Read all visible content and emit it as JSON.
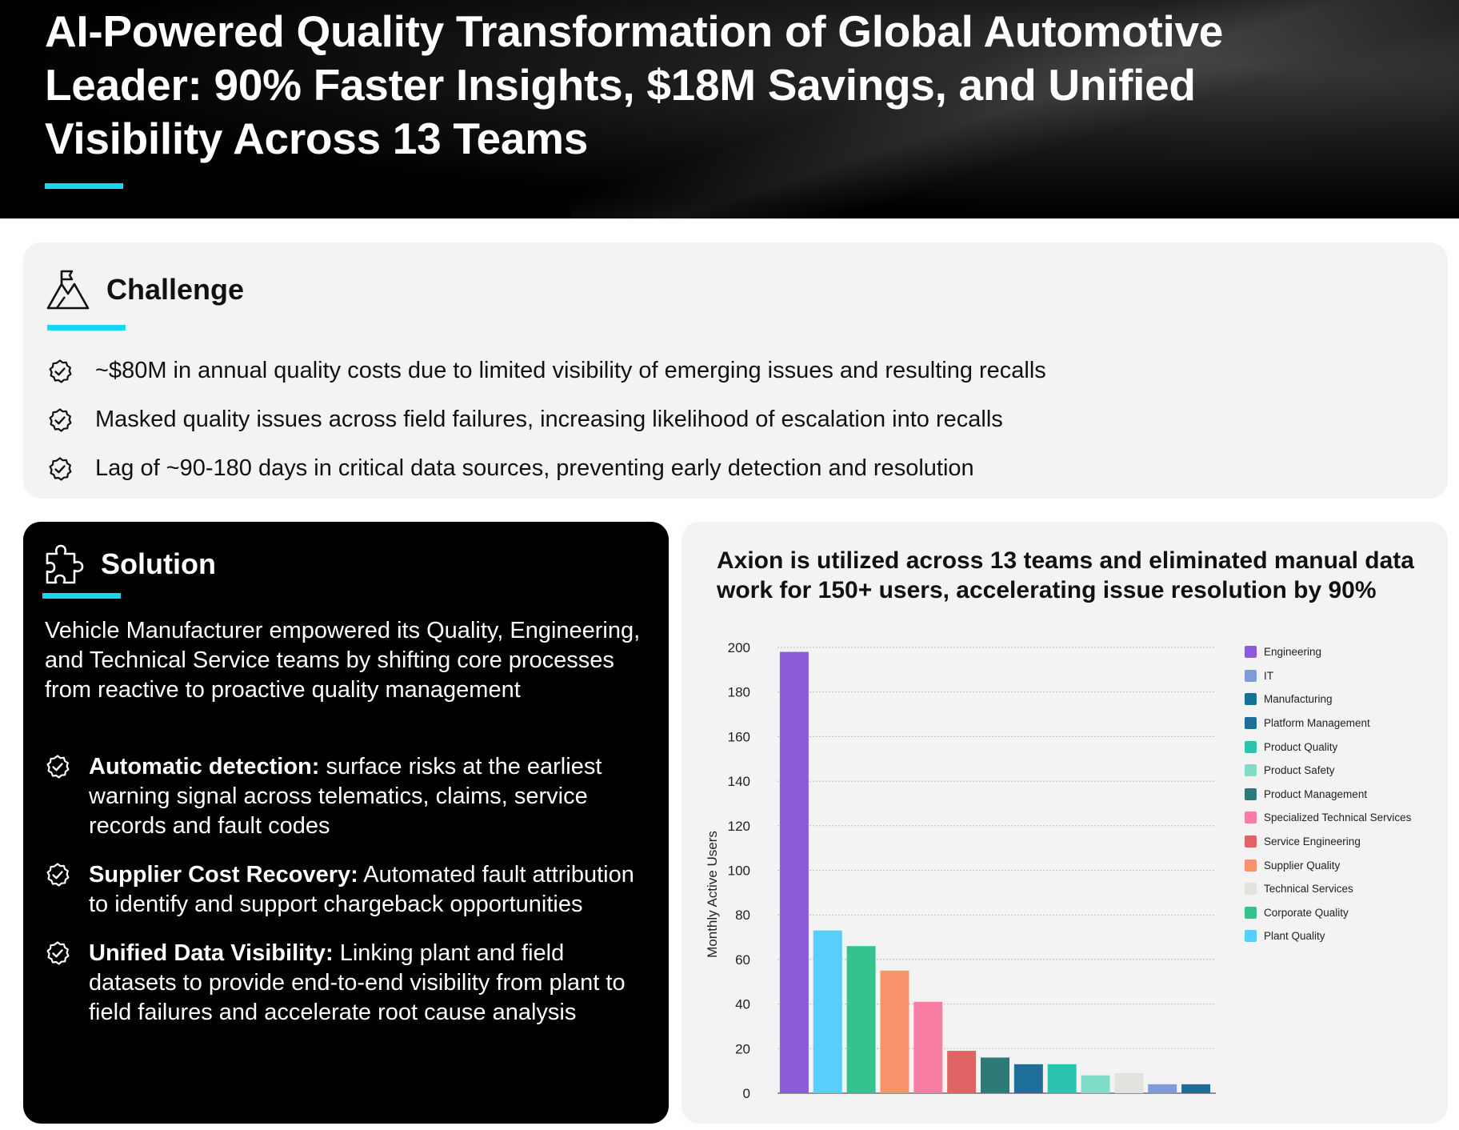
{
  "header": {
    "title": "AI-Powered Quality Transformation of Global Automotive Leader: 90% Faster Insights, $18M Savings, and Unified Visibility Across 13 Teams"
  },
  "challenge": {
    "heading": "Challenge",
    "icon": "mountain-flag-icon",
    "items": [
      "~$80M in annual quality costs due to limited visibility of emerging issues and resulting recalls",
      "Masked quality issues across field failures, increasing likelihood of escalation into recalls",
      "Lag of ~90-180 days in critical data sources, preventing early detection and resolution"
    ]
  },
  "solution": {
    "heading": "Solution",
    "icon": "puzzle-piece-icon",
    "intro": "Vehicle Manufacturer empowered its Quality, Engineering, and Technical Service teams by shifting core processes from reactive to proactive quality management",
    "items": [
      {
        "bold": "Automatic detection:",
        "text": " surface risks at the earliest warning signal across telematics, claims, service records and fault codes"
      },
      {
        "bold": "Supplier Cost Recovery:",
        "text": " Automated fault attribution to identify and support chargeback opportunities"
      },
      {
        "bold": "Unified Data Visibility:",
        "text": " Linking plant and field datasets to provide end-to-end visibility from plant to field failures and accelerate root cause analysis"
      }
    ]
  },
  "colors": {
    "accent": "#17d6f1",
    "hero_bg": "#000000",
    "card_bg": "#f3f3f3"
  },
  "chart_data": {
    "type": "bar",
    "title": "Axion is utilized across 13 teams and eliminated manual data work for 150+ users, accelerating issue resolution by 90%",
    "ylabel": "Monthly Active Users",
    "xlabel": "",
    "ylim": [
      0,
      200
    ],
    "yticks": [
      0,
      20,
      40,
      60,
      80,
      100,
      120,
      140,
      160,
      180,
      200
    ],
    "grid": true,
    "legend_position": "right",
    "series": [
      {
        "name": "Engineering",
        "value": 198,
        "color": "#8a5cd8"
      },
      {
        "name": "Plant Quality",
        "value": 73,
        "color": "#58cffb"
      },
      {
        "name": "Corporate Quality",
        "value": 66,
        "color": "#34c38f"
      },
      {
        "name": "Supplier Quality",
        "value": 55,
        "color": "#f7936a"
      },
      {
        "name": "Specialized Technical Services",
        "value": 41,
        "color": "#f87fa3"
      },
      {
        "name": "Service Engineering",
        "value": 19,
        "color": "#e06464"
      },
      {
        "name": "Product Management",
        "value": 16,
        "color": "#2e7a78"
      },
      {
        "name": "Platform Management",
        "value": 13,
        "color": "#1e6e9a"
      },
      {
        "name": "Product Quality",
        "value": 13,
        "color": "#2bc4b0"
      },
      {
        "name": "Product Safety",
        "value": 8,
        "color": "#7fdcc6"
      },
      {
        "name": "Technical Services",
        "value": 9,
        "color": "#e2e2de"
      },
      {
        "name": "IT",
        "value": 4,
        "color": "#7e9ad8"
      },
      {
        "name": "Manufacturing",
        "value": 4,
        "color": "#1a6f96"
      }
    ],
    "legend_order": [
      "Engineering",
      "IT",
      "Manufacturing",
      "Platform Management",
      "Product Quality",
      "Product Safety",
      "Product Management",
      "Specialized Technical Services",
      "Service Engineering",
      "Supplier Quality",
      "Technical Services",
      "Corporate Quality",
      "Plant Quality"
    ]
  }
}
